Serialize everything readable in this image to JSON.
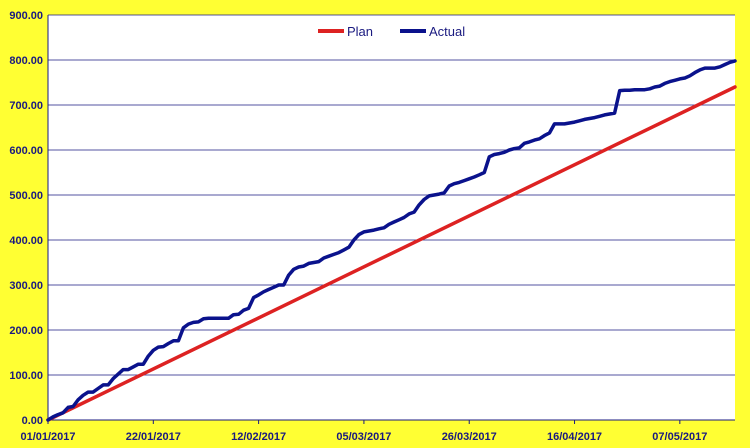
{
  "chart_data": {
    "type": "line",
    "title": "",
    "xlabel": "",
    "ylabel": "",
    "ylim": [
      0,
      900
    ],
    "y_ticks": [
      "0.00",
      "100.00",
      "200.00",
      "300.00",
      "400.00",
      "500.00",
      "600.00",
      "700.00",
      "800.00",
      "900.00"
    ],
    "x_ticks": [
      "01/01/2017",
      "22/01/2017",
      "12/02/2017",
      "05/03/2017",
      "26/03/2017",
      "16/04/2017",
      "07/05/2017"
    ],
    "x_range": [
      "2017-01-01",
      "2017-05-18"
    ],
    "grid": true,
    "legend_position": "top-center",
    "series": [
      {
        "name": "Plan",
        "color": "#dd2222",
        "points": [
          [
            "2017-01-01",
            0
          ],
          [
            "2017-05-18",
            740
          ]
        ]
      },
      {
        "name": "Actual",
        "color": "#0a128c",
        "points": [
          [
            "2017-01-01",
            0
          ],
          [
            "2017-01-02",
            7
          ],
          [
            "2017-01-03",
            12
          ],
          [
            "2017-01-04",
            16
          ],
          [
            "2017-01-05",
            28
          ],
          [
            "2017-01-06",
            30
          ],
          [
            "2017-01-07",
            45
          ],
          [
            "2017-01-08",
            55
          ],
          [
            "2017-01-09",
            62
          ],
          [
            "2017-01-10",
            62
          ],
          [
            "2017-01-11",
            70
          ],
          [
            "2017-01-12",
            78
          ],
          [
            "2017-01-13",
            78
          ],
          [
            "2017-01-14",
            92
          ],
          [
            "2017-01-15",
            102
          ],
          [
            "2017-01-16",
            112
          ],
          [
            "2017-01-17",
            112
          ],
          [
            "2017-01-18",
            118
          ],
          [
            "2017-01-19",
            124
          ],
          [
            "2017-01-20",
            124
          ],
          [
            "2017-01-21",
            142
          ],
          [
            "2017-01-22",
            155
          ],
          [
            "2017-01-23",
            162
          ],
          [
            "2017-01-24",
            163
          ],
          [
            "2017-01-25",
            170
          ],
          [
            "2017-01-26",
            176
          ],
          [
            "2017-01-27",
            176
          ],
          [
            "2017-01-28",
            205
          ],
          [
            "2017-01-29",
            213
          ],
          [
            "2017-01-30",
            217
          ],
          [
            "2017-01-31",
            218
          ],
          [
            "2017-02-01",
            225
          ],
          [
            "2017-02-02",
            226
          ],
          [
            "2017-02-03",
            226
          ],
          [
            "2017-02-04",
            226
          ],
          [
            "2017-02-05",
            226
          ],
          [
            "2017-02-06",
            226
          ],
          [
            "2017-02-07",
            234
          ],
          [
            "2017-02-08",
            235
          ],
          [
            "2017-02-09",
            244
          ],
          [
            "2017-02-10",
            248
          ],
          [
            "2017-02-11",
            272
          ],
          [
            "2017-02-12",
            278
          ],
          [
            "2017-02-13",
            285
          ],
          [
            "2017-02-14",
            290
          ],
          [
            "2017-02-15",
            295
          ],
          [
            "2017-02-16",
            300
          ],
          [
            "2017-02-17",
            300
          ],
          [
            "2017-02-18",
            322
          ],
          [
            "2017-02-19",
            335
          ],
          [
            "2017-02-20",
            340
          ],
          [
            "2017-02-21",
            342
          ],
          [
            "2017-02-22",
            348
          ],
          [
            "2017-02-23",
            350
          ],
          [
            "2017-02-24",
            352
          ],
          [
            "2017-02-25",
            360
          ],
          [
            "2017-02-26",
            364
          ],
          [
            "2017-02-27",
            368
          ],
          [
            "2017-02-28",
            372
          ],
          [
            "2017-03-01",
            378
          ],
          [
            "2017-03-02",
            384
          ],
          [
            "2017-03-03",
            400
          ],
          [
            "2017-03-04",
            412
          ],
          [
            "2017-03-05",
            418
          ],
          [
            "2017-03-06",
            420
          ],
          [
            "2017-03-07",
            422
          ],
          [
            "2017-03-08",
            425
          ],
          [
            "2017-03-09",
            427
          ],
          [
            "2017-03-10",
            435
          ],
          [
            "2017-03-11",
            440
          ],
          [
            "2017-03-12",
            445
          ],
          [
            "2017-03-13",
            450
          ],
          [
            "2017-03-14",
            458
          ],
          [
            "2017-03-15",
            462
          ],
          [
            "2017-03-16",
            478
          ],
          [
            "2017-03-17",
            490
          ],
          [
            "2017-03-18",
            498
          ],
          [
            "2017-03-19",
            500
          ],
          [
            "2017-03-20",
            502
          ],
          [
            "2017-03-21",
            505
          ],
          [
            "2017-03-22",
            520
          ],
          [
            "2017-03-23",
            525
          ],
          [
            "2017-03-24",
            528
          ],
          [
            "2017-03-25",
            532
          ],
          [
            "2017-03-26",
            536
          ],
          [
            "2017-03-27",
            540
          ],
          [
            "2017-03-28",
            545
          ],
          [
            "2017-03-29",
            550
          ],
          [
            "2017-03-30",
            585
          ],
          [
            "2017-03-31",
            590
          ],
          [
            "2017-04-01",
            592
          ],
          [
            "2017-04-02",
            595
          ],
          [
            "2017-04-03",
            600
          ],
          [
            "2017-04-04",
            603
          ],
          [
            "2017-04-05",
            605
          ],
          [
            "2017-04-06",
            615
          ],
          [
            "2017-04-07",
            618
          ],
          [
            "2017-04-08",
            622
          ],
          [
            "2017-04-09",
            625
          ],
          [
            "2017-04-10",
            632
          ],
          [
            "2017-04-11",
            638
          ],
          [
            "2017-04-12",
            658
          ],
          [
            "2017-04-13",
            658
          ],
          [
            "2017-04-14",
            658
          ],
          [
            "2017-04-15",
            660
          ],
          [
            "2017-04-16",
            662
          ],
          [
            "2017-04-17",
            665
          ],
          [
            "2017-04-18",
            668
          ],
          [
            "2017-04-19",
            670
          ],
          [
            "2017-04-20",
            672
          ],
          [
            "2017-04-21",
            675
          ],
          [
            "2017-04-22",
            678
          ],
          [
            "2017-04-23",
            680
          ],
          [
            "2017-04-24",
            682
          ],
          [
            "2017-04-25",
            732
          ],
          [
            "2017-04-26",
            733
          ],
          [
            "2017-04-27",
            733
          ],
          [
            "2017-04-28",
            734
          ],
          [
            "2017-04-29",
            734
          ],
          [
            "2017-04-30",
            734
          ],
          [
            "2017-05-01",
            736
          ],
          [
            "2017-05-02",
            740
          ],
          [
            "2017-05-03",
            742
          ],
          [
            "2017-05-04",
            748
          ],
          [
            "2017-05-05",
            752
          ],
          [
            "2017-05-06",
            755
          ],
          [
            "2017-05-07",
            758
          ],
          [
            "2017-05-08",
            760
          ],
          [
            "2017-05-09",
            765
          ],
          [
            "2017-05-10",
            772
          ],
          [
            "2017-05-11",
            778
          ],
          [
            "2017-05-12",
            782
          ],
          [
            "2017-05-13",
            782
          ],
          [
            "2017-05-14",
            782
          ],
          [
            "2017-05-15",
            785
          ],
          [
            "2017-05-16",
            790
          ],
          [
            "2017-05-17",
            795
          ],
          [
            "2017-05-18",
            798
          ]
        ]
      }
    ]
  }
}
